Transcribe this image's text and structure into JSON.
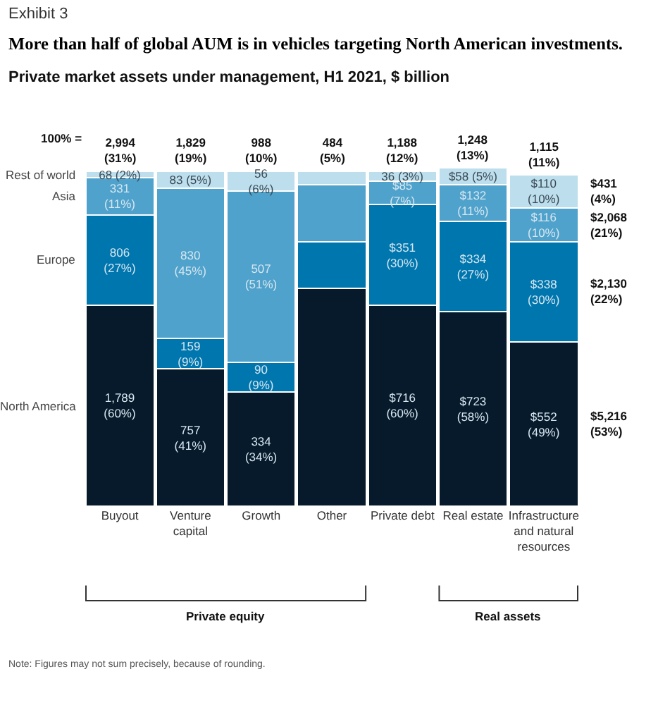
{
  "chart_data": {
    "type": "bar",
    "stacked": true,
    "title": "More than half of global AUM is in vehicles targeting North American investments.",
    "subtitle": "Private market assets under management, H1 2021, $ billion",
    "categories": [
      "Buyout",
      "Venture capital",
      "Growth",
      "Other",
      "Private debt",
      "Real estate",
      "Infrastructure and natural resources"
    ],
    "series": [
      {
        "name": "North America",
        "color": "#071a2b",
        "values": [
          60,
          41,
          34,
          65,
          60,
          58,
          49
        ],
        "value_labels": [
          "1,789 (60%)",
          "757 (41%)",
          "334 (34%)",
          null,
          "$716 (60%)",
          "$723 (58%)",
          "$552 (49%)"
        ]
      },
      {
        "name": "Europe",
        "color": "#0076ae",
        "values": [
          27,
          9,
          9,
          14,
          30,
          27,
          30
        ],
        "value_labels": [
          "806 (27%)",
          "159 (9%)",
          "90 (9%)",
          null,
          "$351 (30%)",
          "$334 (27%)",
          "$338 (30%)"
        ]
      },
      {
        "name": "Asia",
        "color": "#4fa2cb",
        "values": [
          11,
          45,
          51,
          17,
          7,
          11,
          10
        ],
        "value_labels": [
          "331 (11%)",
          "830 (45%)",
          "507 (51%)",
          null,
          "$85 (7%)",
          "$132 (11%)",
          "$116 (10%)"
        ]
      },
      {
        "name": "Rest of world",
        "color": "#bddeed",
        "values": [
          2,
          5,
          6,
          4,
          3,
          5,
          10
        ],
        "value_labels": [
          "68 (2%)",
          "83 (5%)",
          "56 (6%)",
          null,
          "36 (3%)",
          "$58 (5%)",
          "$110 (10%)"
        ]
      }
    ],
    "totals": [
      "2,994 (31%)",
      "1,829 (19%)",
      "988 (10%)",
      "484 (5%)",
      "1,188 (12%)",
      "1,248 (13%)",
      "1,115 (11%)"
    ],
    "annotations": [
      "Exhibit 3",
      "100% =",
      "Private equity",
      "Real assets",
      "Note: Figures may not sum precisely, because of rounding.",
      "$5,216 (53%)",
      "$2,130 (22%)",
      "$2,068 (21%)",
      "$431 (4%)"
    ],
    "legend": false,
    "tick_labels": "x",
    "grid": false
  }
}
